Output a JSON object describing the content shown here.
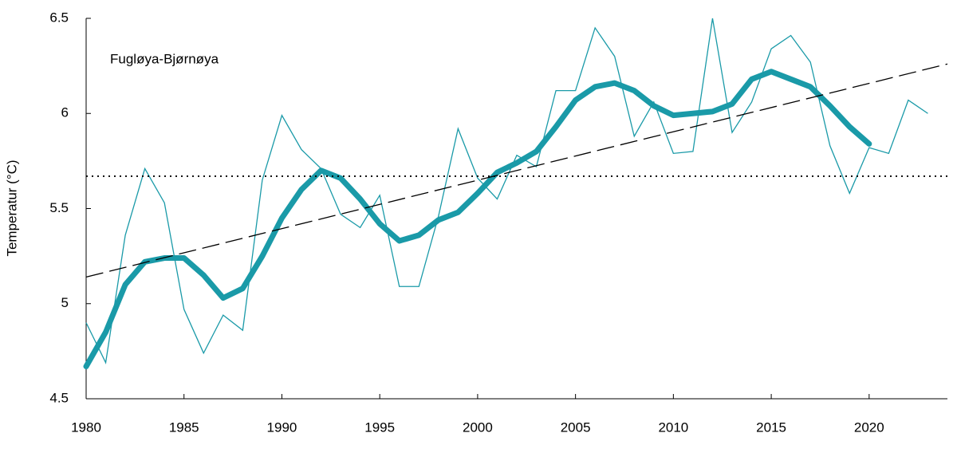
{
  "chart_data": {
    "type": "line",
    "annotation": "Fugløya-Bjørnøya",
    "y_label": "Temperatur (°C)",
    "xlim": [
      1980,
      2024
    ],
    "xticks": [
      1980,
      1985,
      1990,
      1995,
      2000,
      2005,
      2010,
      2015,
      2020
    ],
    "ylim": [
      4.5,
      6.5
    ],
    "yticks": [
      4.5,
      5,
      5.5,
      6,
      6.5
    ],
    "series": [
      {
        "color": "#1a9aa8",
        "style": "thin",
        "x": [
          1980,
          1981,
          1982,
          1983,
          1984,
          1985,
          1986,
          1987,
          1988,
          1989,
          1990,
          1991,
          1992,
          1993,
          1994,
          1995,
          1996,
          1997,
          1998,
          1999,
          2000,
          2001,
          2002,
          2003,
          2004,
          2005,
          2006,
          2007,
          2008,
          2009,
          2010,
          2011,
          2012,
          2013,
          2014,
          2015,
          2016,
          2017,
          2018,
          2019,
          2020,
          2021,
          2022,
          2023
        ],
        "values": [
          4.9,
          4.69,
          5.36,
          5.71,
          5.53,
          4.97,
          4.74,
          4.94,
          4.86,
          5.65,
          5.99,
          5.81,
          5.71,
          5.47,
          5.4,
          5.57,
          5.09,
          5.09,
          5.46,
          5.92,
          5.66,
          5.55,
          5.78,
          5.72,
          6.12,
          6.12,
          6.45,
          6.3,
          5.88,
          6.06,
          5.79,
          5.8,
          6.5,
          5.9,
          6.06,
          6.34,
          6.41,
          6.27,
          5.83,
          5.58,
          5.82,
          5.79,
          6.07,
          6.0
        ]
      },
      {
        "color": "#1a9aa8",
        "style": "thick",
        "x": [
          1980,
          1981,
          1982,
          1983,
          1984,
          1985,
          1986,
          1987,
          1988,
          1989,
          1990,
          1991,
          1992,
          1993,
          1994,
          1995,
          1996,
          1997,
          1998,
          1999,
          2000,
          2001,
          2002,
          2003,
          2004,
          2005,
          2006,
          2007,
          2008,
          2009,
          2010,
          2011,
          2012,
          2013,
          2014,
          2015,
          2016,
          2017,
          2018,
          2019,
          2020
        ],
        "values": [
          4.67,
          4.85,
          5.1,
          5.22,
          5.24,
          5.24,
          5.15,
          5.03,
          5.08,
          5.25,
          5.45,
          5.6,
          5.7,
          5.66,
          5.55,
          5.42,
          5.33,
          5.36,
          5.44,
          5.48,
          5.58,
          5.69,
          5.74,
          5.8,
          5.93,
          6.07,
          6.14,
          6.16,
          6.12,
          6.04,
          5.99,
          6.0,
          6.01,
          6.05,
          6.18,
          6.22,
          6.18,
          6.14,
          6.04,
          5.93,
          5.84
        ]
      },
      {
        "color": "#000000",
        "style": "dashed",
        "x": [
          1980,
          2024
        ],
        "values": [
          5.14,
          6.26
        ]
      },
      {
        "color": "#000000",
        "style": "dotted",
        "x": [
          1980,
          2024
        ],
        "values": [
          5.67,
          5.67
        ]
      }
    ]
  }
}
